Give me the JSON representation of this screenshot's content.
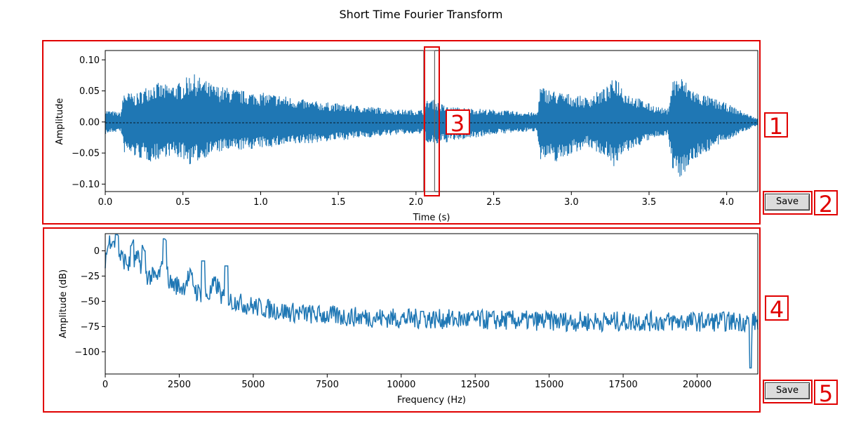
{
  "figure": {
    "title": "Short Time Fourier Transform",
    "save_button_1": "Save",
    "save_button_2": "Save",
    "callouts": [
      "1",
      "2",
      "3",
      "4",
      "5"
    ],
    "callout_color": "#e00000",
    "line_color": "#1f77b4"
  },
  "chart_data": [
    {
      "type": "line",
      "title": "",
      "xlabel": "Time (s)",
      "ylabel": "Amplitude",
      "xlim": [
        0,
        4.2
      ],
      "ylim": [
        -0.112,
        0.115
      ],
      "xticks": [
        "0.0",
        "0.5",
        "1.0",
        "1.5",
        "2.0",
        "2.5",
        "3.0",
        "3.5",
        "4.0"
      ],
      "yticks": [
        "−0.10",
        "−0.05",
        "0.00",
        "0.05",
        "0.10"
      ],
      "zero_line": true,
      "selection_window_s": [
        2.05,
        2.12
      ],
      "envelope": [
        {
          "x": 0.0,
          "top": 0.02,
          "bottom": -0.02
        },
        {
          "x": 0.1,
          "top": 0.015,
          "bottom": -0.015
        },
        {
          "x": 0.12,
          "top": 0.05,
          "bottom": -0.05
        },
        {
          "x": 0.2,
          "top": 0.045,
          "bottom": -0.058
        },
        {
          "x": 0.3,
          "top": 0.065,
          "bottom": -0.065
        },
        {
          "x": 0.4,
          "top": 0.06,
          "bottom": -0.055
        },
        {
          "x": 0.5,
          "top": 0.065,
          "bottom": -0.06
        },
        {
          "x": 0.55,
          "top": 0.08,
          "bottom": -0.07
        },
        {
          "x": 0.7,
          "top": 0.06,
          "bottom": -0.05
        },
        {
          "x": 0.9,
          "top": 0.05,
          "bottom": -0.045
        },
        {
          "x": 1.1,
          "top": 0.045,
          "bottom": -0.04
        },
        {
          "x": 1.3,
          "top": 0.035,
          "bottom": -0.035
        },
        {
          "x": 1.5,
          "top": 0.03,
          "bottom": -0.03
        },
        {
          "x": 1.7,
          "top": 0.025,
          "bottom": -0.025
        },
        {
          "x": 1.9,
          "top": 0.02,
          "bottom": -0.02
        },
        {
          "x": 2.05,
          "top": 0.02,
          "bottom": -0.02
        },
        {
          "x": 2.08,
          "top": 0.04,
          "bottom": -0.04
        },
        {
          "x": 2.2,
          "top": 0.025,
          "bottom": -0.033
        },
        {
          "x": 2.5,
          "top": 0.02,
          "bottom": -0.02
        },
        {
          "x": 2.78,
          "top": 0.015,
          "bottom": -0.015
        },
        {
          "x": 2.8,
          "top": 0.058,
          "bottom": -0.06
        },
        {
          "x": 2.9,
          "top": 0.05,
          "bottom": -0.065
        },
        {
          "x": 3.1,
          "top": 0.04,
          "bottom": -0.04
        },
        {
          "x": 3.25,
          "top": 0.06,
          "bottom": -0.06
        },
        {
          "x": 3.28,
          "top": 0.08,
          "bottom": -0.075
        },
        {
          "x": 3.35,
          "top": 0.05,
          "bottom": -0.05
        },
        {
          "x": 3.5,
          "top": 0.03,
          "bottom": -0.03
        },
        {
          "x": 3.62,
          "top": 0.02,
          "bottom": -0.02
        },
        {
          "x": 3.65,
          "top": 0.07,
          "bottom": -0.08
        },
        {
          "x": 3.7,
          "top": 0.075,
          "bottom": -0.09
        },
        {
          "x": 3.8,
          "top": 0.05,
          "bottom": -0.06
        },
        {
          "x": 4.0,
          "top": 0.03,
          "bottom": -0.03
        },
        {
          "x": 4.2,
          "top": 0.005,
          "bottom": -0.005
        }
      ]
    },
    {
      "type": "line",
      "title": "",
      "xlabel": "Frequency (Hz)",
      "ylabel": "Amplitude (dB)",
      "xlim": [
        0,
        22050
      ],
      "ylim": [
        -122,
        17
      ],
      "xticks": [
        "0",
        "2500",
        "5000",
        "7500",
        "10000",
        "12500",
        "15000",
        "17500",
        "20000"
      ],
      "yticks": [
        "−100",
        "−75",
        "−50",
        "−25",
        "0"
      ],
      "trend": [
        {
          "x": 0,
          "y": -8
        },
        {
          "x": 200,
          "y": 2
        },
        {
          "x": 500,
          "y": -5
        },
        {
          "x": 1000,
          "y": -20
        },
        {
          "x": 2000,
          "y": -30
        },
        {
          "x": 3000,
          "y": -40
        },
        {
          "x": 4000,
          "y": -48
        },
        {
          "x": 5000,
          "y": -55
        },
        {
          "x": 6000,
          "y": -60
        },
        {
          "x": 7000,
          "y": -63
        },
        {
          "x": 8000,
          "y": -65
        },
        {
          "x": 10000,
          "y": -67
        },
        {
          "x": 12000,
          "y": -68
        },
        {
          "x": 14000,
          "y": -69
        },
        {
          "x": 16000,
          "y": -70
        },
        {
          "x": 18000,
          "y": -70
        },
        {
          "x": 20000,
          "y": -70
        },
        {
          "x": 22050,
          "y": -70
        }
      ],
      "peaks": [
        {
          "x": 400,
          "y": 15
        },
        {
          "x": 900,
          "y": 5
        },
        {
          "x": 1300,
          "y": 0
        },
        {
          "x": 2000,
          "y": 0
        },
        {
          "x": 3300,
          "y": -10
        },
        {
          "x": 4100,
          "y": -15
        },
        {
          "x": 10700,
          "y": -60
        },
        {
          "x": 21800,
          "y": -116
        }
      ]
    }
  ]
}
